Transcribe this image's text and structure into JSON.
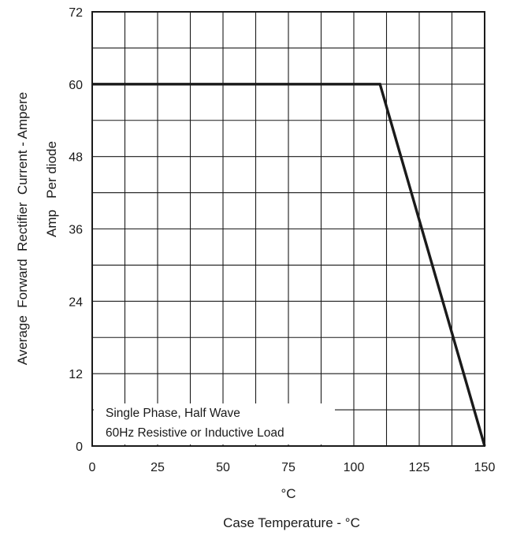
{
  "chart_data": {
    "type": "line",
    "title": "",
    "xlabel": "Case Temperature - °C",
    "xunit": "°C",
    "ylabel": "Average  Forward  Rectifier  Current - Ampere",
    "ylabel2": "Amp   Per diode",
    "xlim": [
      0,
      150
    ],
    "ylim": [
      0,
      72
    ],
    "xticks": [
      0,
      25,
      50,
      75,
      100,
      125,
      150
    ],
    "yticks": [
      0,
      12,
      24,
      36,
      48,
      60,
      72
    ],
    "grid": true,
    "grid_x_step": 12.5,
    "grid_y_step": 6,
    "series": [
      {
        "x": [
          0,
          110,
          150
        ],
        "y": [
          60,
          60,
          0
        ],
        "color": "#1a1a1a"
      }
    ],
    "annotations": [
      "Single Phase, Half Wave",
      "60Hz Resistive or Inductive Load"
    ]
  }
}
